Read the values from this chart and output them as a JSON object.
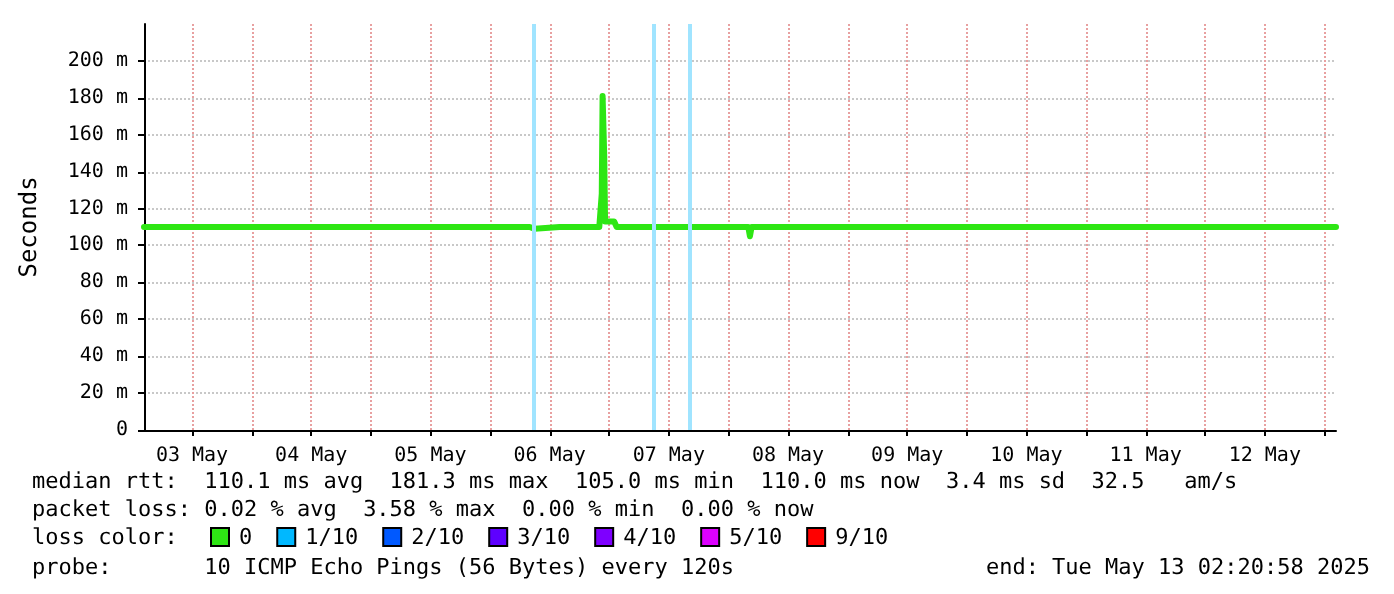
{
  "chart_data": {
    "type": "line",
    "ylabel": "Seconds",
    "legend_title": "loss color:",
    "legend": "bottom left",
    "grid": true,
    "marker": "none",
    "line_style": "solid",
    "xlim": [
      "2025-05-03T02:20",
      "2025-05-13T02:20"
    ],
    "xticks": [
      {
        "value": "2025-05-03T12:00",
        "label": "03 May"
      },
      {
        "value": "2025-05-04T00:00",
        "label": null
      },
      {
        "value": "2025-05-04T12:00",
        "label": "04 May"
      },
      {
        "value": "2025-05-05T00:00",
        "label": null
      },
      {
        "value": "2025-05-05T12:00",
        "label": "05 May"
      },
      {
        "value": "2025-05-06T00:00",
        "label": null
      },
      {
        "value": "2025-05-06T12:00",
        "label": "06 May"
      },
      {
        "value": "2025-05-07T00:00",
        "label": null
      },
      {
        "value": "2025-05-07T12:00",
        "label": "07 May"
      },
      {
        "value": "2025-05-08T00:00",
        "label": null
      },
      {
        "value": "2025-05-08T12:00",
        "label": "08 May"
      },
      {
        "value": "2025-05-09T00:00",
        "label": null
      },
      {
        "value": "2025-05-09T12:00",
        "label": "09 May"
      },
      {
        "value": "2025-05-10T00:00",
        "label": null
      },
      {
        "value": "2025-05-10T12:00",
        "label": "10 May"
      },
      {
        "value": "2025-05-11T00:00",
        "label": null
      },
      {
        "value": "2025-05-11T12:00",
        "label": "11 May"
      },
      {
        "value": "2025-05-12T00:00",
        "label": null
      },
      {
        "value": "2025-05-12T12:00",
        "label": "12 May"
      },
      {
        "value": "2025-05-13T00:00",
        "label": null
      }
    ],
    "ylim": [
      0,
      220
    ],
    "yticks": [
      0,
      {
        "value": 20,
        "label": "20 m"
      },
      {
        "value": 40,
        "label": "40 m"
      },
      {
        "value": 60,
        "label": "60 m"
      },
      {
        "value": 80,
        "label": "80 m"
      },
      {
        "value": 100,
        "label": "100 m"
      },
      {
        "value": 120,
        "label": "120 m"
      },
      {
        "value": 140,
        "label": "140 m"
      },
      {
        "value": 160,
        "label": "160 m"
      },
      {
        "value": 180,
        "label": "180 m"
      },
      {
        "value": 200,
        "label": "200 m"
      }
    ],
    "ref_lines": [
      {
        "axis": "x",
        "value": "2025-05-06T08:48",
        "color": "#a0e4ff"
      },
      {
        "axis": "x",
        "value": "2025-05-07T08:48",
        "color": "#a0e4ff"
      },
      {
        "axis": "x",
        "value": "2025-05-07T16:00",
        "color": "#a0e4ff"
      }
    ],
    "series": [
      {
        "name": "0",
        "color": "#2ee614",
        "x": [
          "2025-05-03T02:20",
          "2025-05-06T08:00",
          "2025-05-06T09:00",
          "2025-05-06T14:00",
          "2025-05-06T22:00",
          "2025-05-06T22:30",
          "2025-05-06T22:40",
          "2025-05-06T23:00",
          "2025-05-06T23:10",
          "2025-05-07T01:00",
          "2025-05-07T01:30",
          "2025-05-08T04:00",
          "2025-05-08T04:20",
          "2025-05-08T04:40",
          "2025-05-13T02:20"
        ],
        "values": [
          110,
          110,
          109,
          110,
          110,
          128,
          181,
          148,
          113,
          113,
          110,
          110,
          105,
          110,
          110
        ]
      },
      {
        "name": "1/10",
        "color": "#00b8ff"
      },
      {
        "name": "2/10",
        "color": "#0059ff"
      },
      {
        "name": "3/10",
        "color": "#5e00ff"
      },
      {
        "name": "4/10",
        "color": "#7e00ff"
      },
      {
        "name": "5/10",
        "color": "#dd00ff"
      },
      {
        "name": "9/10",
        "color": "#ff0000"
      }
    ],
    "annotations": [
      "median rtt:  110.1 ms avg  181.3 ms max  105.0 ms min  110.0 ms now  3.4 ms sd  32.5   am/s",
      "packet loss: 0.02 % avg  3.58 % max  0.00 % min  0.00 % now",
      "probe:       10 ICMP Echo Pings (56 Bytes) every 120s",
      "end: Tue May 13 02:20:58 2025"
    ]
  }
}
